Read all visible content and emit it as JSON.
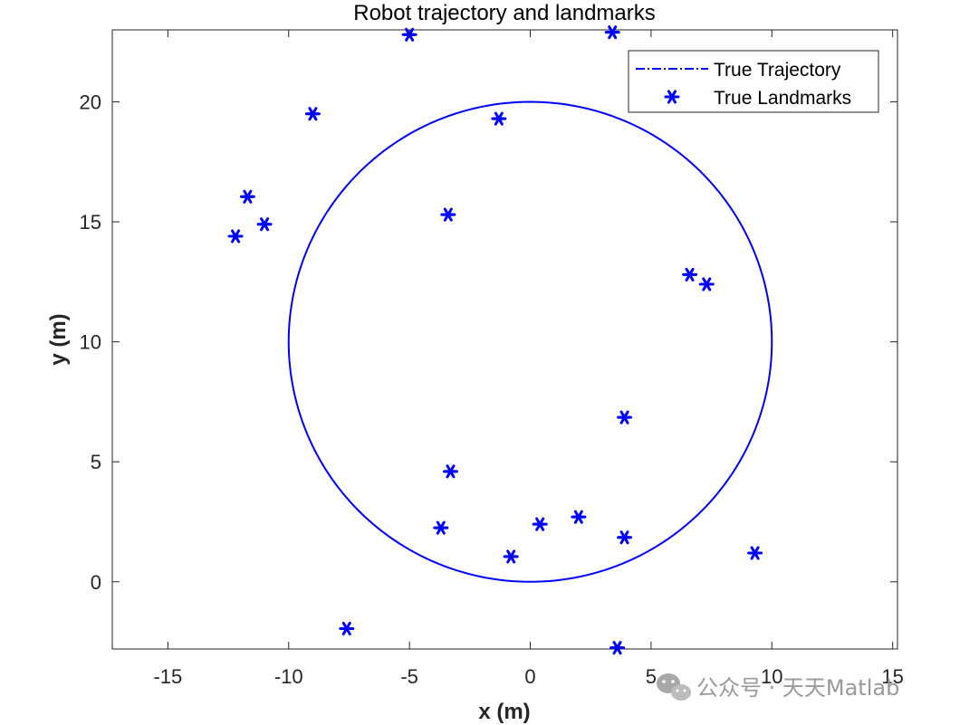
{
  "chart_data": {
    "type": "scatter",
    "title": "Robot trajectory and landmarks",
    "xlabel": "x (m)",
    "ylabel": "y (m)",
    "xlim": [
      -17.3,
      15.2
    ],
    "ylim": [
      -2.8,
      23
    ],
    "xticks": [
      -15,
      -10,
      -5,
      0,
      5,
      10,
      15
    ],
    "yticks": [
      0,
      5,
      10,
      15,
      20
    ],
    "grid": false,
    "legend_position": "top-right",
    "series": [
      {
        "name": "True Trajectory",
        "kind": "line",
        "color": "#0000ff",
        "shape": "circle",
        "center": [
          0,
          10
        ],
        "radius": 10
      },
      {
        "name": "True Landmarks",
        "kind": "scatter",
        "marker": "asterisk",
        "color": "#0000ff",
        "points": [
          [
            -5.0,
            22.8
          ],
          [
            3.4,
            22.9
          ],
          [
            -9.0,
            19.5
          ],
          [
            -1.3,
            19.3
          ],
          [
            -11.7,
            16.05
          ],
          [
            -11.0,
            14.9
          ],
          [
            -12.2,
            14.4
          ],
          [
            -3.4,
            15.3
          ],
          [
            6.6,
            12.8
          ],
          [
            7.3,
            12.4
          ],
          [
            3.9,
            6.85
          ],
          [
            -3.3,
            4.6
          ],
          [
            -3.7,
            2.25
          ],
          [
            0.4,
            2.4
          ],
          [
            2.0,
            2.7
          ],
          [
            3.9,
            1.85
          ],
          [
            -0.8,
            1.05
          ],
          [
            9.3,
            1.2
          ],
          [
            -7.6,
            -1.95
          ],
          [
            3.6,
            -2.75
          ]
        ]
      }
    ]
  },
  "watermark": {
    "text": "公众号 · 天天Matlab"
  }
}
